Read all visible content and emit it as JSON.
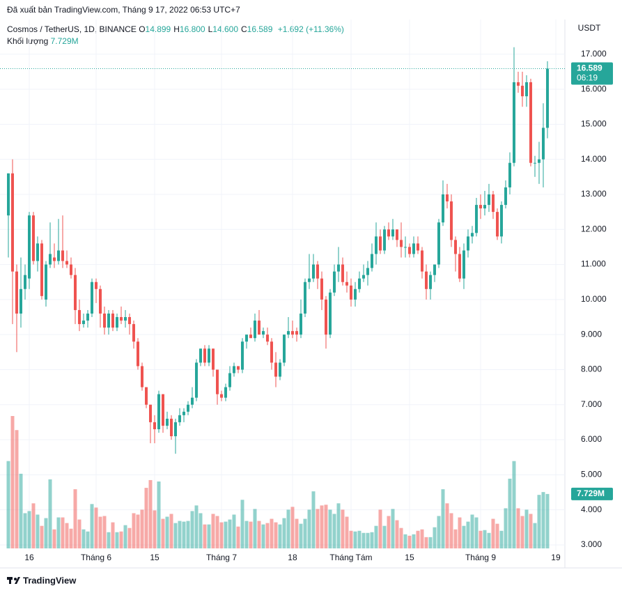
{
  "header": {
    "published": "Đã xuất bản TradingView.com, Tháng 9 17, 2022 06:53 UTC+7"
  },
  "footer": {
    "brand": "TradingView"
  },
  "chart_data": {
    "type": "candlestick",
    "symbol": "Cosmos / TetherUS, 1D, BINANCE",
    "legend_items": [
      {
        "key": "O",
        "text": "14.899"
      },
      {
        "key": "H",
        "text": "16.800"
      },
      {
        "key": "L",
        "text": "14.600"
      },
      {
        "key": "C",
        "text": "16.589"
      }
    ],
    "change": "+1.692 (+11.36%)",
    "volume_title": "Khối lượng",
    "volume_label": "7.729M",
    "countdown": "06:19",
    "currency": "USDT",
    "up_color": "#26a69a",
    "down_color": "#ef5350",
    "grid": true,
    "xlim": [
      -2,
      133.17
    ],
    "xticks": [
      {
        "value": 5,
        "label": "16"
      },
      {
        "value": 21,
        "label": "Tháng 6"
      },
      {
        "value": 35,
        "label": "15"
      },
      {
        "value": 51,
        "label": "Tháng 7"
      },
      {
        "value": 68,
        "label": "18"
      },
      {
        "value": 82,
        "label": "Tháng Tám"
      },
      {
        "value": 96,
        "label": "15"
      },
      {
        "value": 113,
        "label": "Tháng 9"
      },
      {
        "value": 131,
        "label": "19"
      }
    ],
    "ylim": [
      2.84,
      17.99
    ],
    "yticks": [
      {
        "value": 3,
        "label": "3.000"
      },
      {
        "value": 4,
        "label": "4.000"
      },
      {
        "value": 5,
        "label": "5.000"
      },
      {
        "value": 6,
        "label": "6.000"
      },
      {
        "value": 7,
        "label": "7.000"
      },
      {
        "value": 8,
        "label": "8.000"
      },
      {
        "value": 9,
        "label": "9.000"
      },
      {
        "value": 10,
        "label": "10.000"
      },
      {
        "value": 11,
        "label": "11.000"
      },
      {
        "value": 12,
        "label": "12.000"
      },
      {
        "value": 13,
        "label": "13.000"
      },
      {
        "value": 14,
        "label": "14.000"
      },
      {
        "value": 15,
        "label": "15.000"
      },
      {
        "value": 16,
        "label": "16.000"
      },
      {
        "value": 17,
        "label": "17.000"
      }
    ],
    "open": [
      12.4,
      13.6,
      10.8,
      9.6,
      10.3,
      10.6,
      12.4,
      11.1,
      11.6,
      10.0,
      11.0,
      11.2,
      11.1,
      11.4,
      11.1,
      11.0,
      10.7,
      9.7,
      9.3,
      9.4,
      9.6,
      10.5,
      10.3,
      9.6,
      9.2,
      9.6,
      9.2,
      9.5,
      9.4,
      9.5,
      9.3,
      8.8,
      8.1,
      7.5,
      7.0,
      6.5,
      6.3,
      7.3,
      6.4,
      6.6,
      6.1,
      6.5,
      6.7,
      6.8,
      7.0,
      7.2,
      8.2,
      8.6,
      8.2,
      8.6,
      8.0,
      7.3,
      7.2,
      7.5,
      7.9,
      8.1,
      8.0,
      8.8,
      9.0,
      8.9,
      9.4,
      9.0,
      9.0,
      8.8,
      8.2,
      7.8,
      8.2,
      9.0,
      9.1,
      9.1,
      9.0,
      9.6,
      10.5,
      10.6,
      11.0,
      10.6,
      10.0,
      9.0,
      10.2,
      10.8,
      11.0,
      10.5,
      10.4,
      10.0,
      10.3,
      10.6,
      10.7,
      10.9,
      11.3,
      11.8,
      11.4,
      12.0,
      11.8,
      12.0,
      11.7,
      11.5,
      11.5,
      11.3,
      11.6,
      11.4,
      10.8,
      10.3,
      10.7,
      11.0,
      12.2,
      13.0,
      12.8,
      11.7,
      11.3,
      10.6,
      11.4,
      11.8,
      11.9,
      12.7,
      12.6,
      12.7,
      13.0,
      12.5,
      11.8,
      12.7,
      13.2,
      13.9,
      16.2,
      16.1,
      15.8,
      16.2,
      13.9,
      13.9,
      14.0,
      14.899
    ],
    "high": [
      13.6,
      14.0,
      11.0,
      11.2,
      11.0,
      12.5,
      12.5,
      11.8,
      11.7,
      11.1,
      12.2,
      11.6,
      12.3,
      12.4,
      11.4,
      11.2,
      10.9,
      10.0,
      9.6,
      9.7,
      10.6,
      10.6,
      10.4,
      9.8,
      9.7,
      9.7,
      9.6,
      9.8,
      9.7,
      9.6,
      9.4,
      8.9,
      8.2,
      7.5,
      7.0,
      6.7,
      7.4,
      7.3,
      6.8,
      6.7,
      6.6,
      6.9,
      6.9,
      7.1,
      7.5,
      8.3,
      8.6,
      8.7,
      8.7,
      8.6,
      8.0,
      7.4,
      7.6,
      8.1,
      8.2,
      8.1,
      8.9,
      9.0,
      9.2,
      9.6,
      9.7,
      9.2,
      9.2,
      8.9,
      8.5,
      8.3,
      9.0,
      9.5,
      9.4,
      9.2,
      10.0,
      10.6,
      11.3,
      11.3,
      11.1,
      10.8,
      10.1,
      10.3,
      11.0,
      11.5,
      11.2,
      10.8,
      10.6,
      10.5,
      10.8,
      11.0,
      11.1,
      11.6,
      12.2,
      12.0,
      12.1,
      12.2,
      12.3,
      12.0,
      12.2,
      11.8,
      11.6,
      11.8,
      11.8,
      11.5,
      11.0,
      10.8,
      11.0,
      12.3,
      13.4,
      13.3,
      13.0,
      11.8,
      11.5,
      11.6,
      12.0,
      12.1,
      12.9,
      13.0,
      13.1,
      13.3,
      13.1,
      12.6,
      12.8,
      13.4,
      14.2,
      17.2,
      16.5,
      16.5,
      16.4,
      16.3,
      14.1,
      14.5,
      15.6,
      16.8
    ],
    "low": [
      11.2,
      9.3,
      8.5,
      9.2,
      10.0,
      10.3,
      11.0,
      10.8,
      10.0,
      9.8,
      10.9,
      10.9,
      11.0,
      10.9,
      10.9,
      10.6,
      9.3,
      9.1,
      9.2,
      9.2,
      9.5,
      9.9,
      9.2,
      9.0,
      9.0,
      9.1,
      9.1,
      9.3,
      9.2,
      9.0,
      8.6,
      8.0,
      7.4,
      6.9,
      5.9,
      5.9,
      6.2,
      6.2,
      6.3,
      6.0,
      5.6,
      6.4,
      6.5,
      6.7,
      6.9,
      7.1,
      8.1,
      8.1,
      8.1,
      7.8,
      7.0,
      7.1,
      7.1,
      7.4,
      7.8,
      7.9,
      7.9,
      8.6,
      8.9,
      8.8,
      9.0,
      8.9,
      8.7,
      8.0,
      7.5,
      7.7,
      8.1,
      8.9,
      8.9,
      8.8,
      8.9,
      9.5,
      10.3,
      10.5,
      10.3,
      9.7,
      8.6,
      8.9,
      10.1,
      10.5,
      10.4,
      10.2,
      9.8,
      9.8,
      10.2,
      10.5,
      10.4,
      10.8,
      11.0,
      11.3,
      11.3,
      11.7,
      11.7,
      11.5,
      11.2,
      11.2,
      11.2,
      11.2,
      11.3,
      10.6,
      10.0,
      10.0,
      10.5,
      10.9,
      12.1,
      12.6,
      11.5,
      10.8,
      10.5,
      10.3,
      11.2,
      11.6,
      11.8,
      12.3,
      12.4,
      12.5,
      12.3,
      11.7,
      11.6,
      12.6,
      13.0,
      13.8,
      15.9,
      15.5,
      15.5,
      13.8,
      13.5,
      13.3,
      13.2,
      14.6
    ],
    "close": [
      13.6,
      10.8,
      9.6,
      10.3,
      10.7,
      12.4,
      11.1,
      11.6,
      10.1,
      11.0,
      11.3,
      11.1,
      11.4,
      11.1,
      11.0,
      10.7,
      9.7,
      9.3,
      9.4,
      9.6,
      10.5,
      10.3,
      9.6,
      9.2,
      9.6,
      9.2,
      9.5,
      9.4,
      9.5,
      9.3,
      8.8,
      8.1,
      7.5,
      7.0,
      6.5,
      6.3,
      7.3,
      6.4,
      6.6,
      6.1,
      6.5,
      6.7,
      6.8,
      7.0,
      7.2,
      8.2,
      8.6,
      8.2,
      8.6,
      8.0,
      7.3,
      7.2,
      7.5,
      7.9,
      8.1,
      8.0,
      8.8,
      9.0,
      8.9,
      9.4,
      9.0,
      9.1,
      8.8,
      8.2,
      7.8,
      8.2,
      9.0,
      9.1,
      9.0,
      9.0,
      9.6,
      10.5,
      10.6,
      11.0,
      10.6,
      10.0,
      9.0,
      10.2,
      10.8,
      11.0,
      10.5,
      10.4,
      10.0,
      10.3,
      10.6,
      10.7,
      10.9,
      11.3,
      11.8,
      11.4,
      12.0,
      11.8,
      12.0,
      11.7,
      11.5,
      11.5,
      11.3,
      11.6,
      11.4,
      10.8,
      10.3,
      10.7,
      11.0,
      12.2,
      13.0,
      12.8,
      11.7,
      11.3,
      10.6,
      11.4,
      11.8,
      11.9,
      12.7,
      12.6,
      12.7,
      13.0,
      12.5,
      11.8,
      12.7,
      13.2,
      13.9,
      16.2,
      16.1,
      15.8,
      16.2,
      13.9,
      13.9,
      14.0,
      14.9,
      16.589
    ],
    "volume": [
      12.4,
      18.8,
      16.8,
      10.6,
      5.0,
      5.3,
      6.4,
      4.8,
      3.2,
      4.3,
      9.8,
      2.7,
      4.4,
      4.4,
      3.6,
      2.8,
      8.4,
      4.1,
      2.7,
      2.4,
      6.3,
      5.8,
      4.5,
      4.6,
      2.3,
      3.7,
      2.3,
      2.4,
      3.3,
      2.9,
      5.0,
      4.8,
      5.5,
      8.6,
      9.7,
      5.4,
      9.5,
      4.2,
      4.5,
      4.9,
      3.6,
      3.9,
      3.8,
      3.9,
      5.3,
      6.1,
      5.0,
      3.4,
      3.4,
      4.9,
      4.6,
      3.7,
      3.8,
      4.1,
      4.8,
      3.1,
      6.9,
      3.9,
      3.8,
      5.6,
      3.9,
      3.4,
      3.6,
      4.2,
      3.7,
      3.4,
      4.3,
      5.5,
      5.9,
      4.2,
      3.5,
      4.2,
      5.5,
      8.1,
      5.6,
      6.1,
      6.2,
      5.5,
      4.9,
      6.4,
      5.5,
      4.5,
      2.5,
      2.4,
      2.5,
      2.2,
      2.2,
      2.3,
      3.2,
      5.5,
      3.2,
      4.6,
      5.6,
      4.0,
      2.9,
      2.0,
      1.8,
      2.0,
      2.5,
      2.7,
      1.6,
      1.6,
      3.0,
      4.6,
      8.4,
      6.4,
      5.0,
      2.7,
      4.4,
      3.2,
      3.8,
      4.8,
      4.4,
      2.5,
      2.6,
      2.2,
      4.2,
      3.5,
      2.5,
      5.7,
      9.9,
      12.4,
      5.7,
      4.6,
      5.5,
      4.9,
      3.6,
      7.6,
      8.0,
      7.729
    ]
  }
}
